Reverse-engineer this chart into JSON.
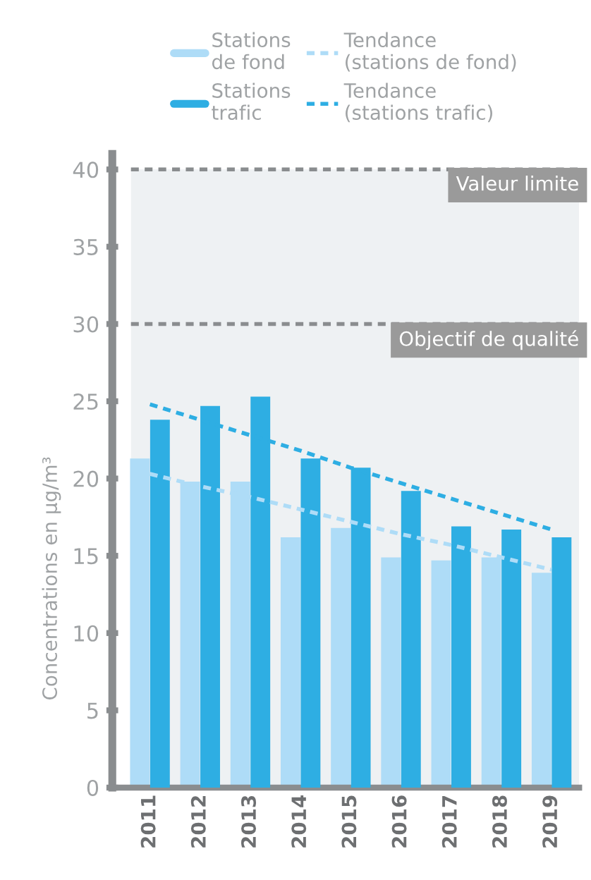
{
  "chart_data": {
    "type": "bar",
    "ylabel": "Concentrations en µg/m³",
    "categories": [
      "2011",
      "2012",
      "2013",
      "2014",
      "2015",
      "2016",
      "2017",
      "2018",
      "2019"
    ],
    "series": [
      {
        "name": "Stations\nde fond",
        "color": "#aedcf7",
        "values": [
          21.3,
          19.8,
          19.8,
          16.2,
          16.8,
          14.9,
          14.7,
          14.9,
          13.9
        ]
      },
      {
        "name": "Stations\ntrafic",
        "color": "#2eaee3",
        "values": [
          23.8,
          24.7,
          25.3,
          21.3,
          20.7,
          19.2,
          16.9,
          16.7,
          16.2
        ]
      },
      {
        "name": "Tendance\n(stations de fond)",
        "type": "line",
        "line_style": "dashed",
        "color": "#aedcf7",
        "values": [
          20.3,
          19.5,
          18.8,
          18.0,
          17.2,
          16.4,
          15.7,
          14.9,
          14.1
        ]
      },
      {
        "name": "Tendance\n(stations trafic)",
        "type": "line",
        "line_style": "dashed",
        "color": "#2eaee3",
        "values": [
          24.8,
          23.8,
          22.8,
          21.8,
          20.7,
          19.7,
          18.7,
          17.7,
          16.7
        ]
      }
    ],
    "ylim": [
      0,
      41
    ],
    "yticks": [
      0,
      5,
      10,
      15,
      20,
      25,
      30,
      35,
      40
    ],
    "ref_lines": [
      {
        "axis": "y",
        "value": 40,
        "label": "Valeur limite",
        "color": "#8a8d8f",
        "line_style": "dashed"
      },
      {
        "axis": "y",
        "value": 30,
        "label": "Objectif de qualité",
        "color": "#8a8d8f",
        "line_style": "dashed"
      }
    ],
    "bands": [
      {
        "axis": "y",
        "from": 0,
        "to": 40,
        "color": "#eef1f3"
      }
    ],
    "grid": false,
    "legend": "top"
  }
}
